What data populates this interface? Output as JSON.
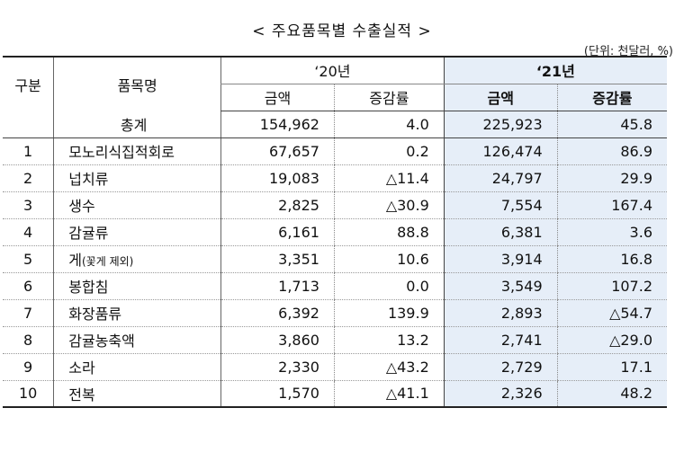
{
  "title": "<  주요품목별  수출실적  >",
  "unit": "(단위: 천달러, %)",
  "header": {
    "col_category": "구분",
    "col_item": "품목명",
    "year_20": "‘20년",
    "year_21": "‘21년",
    "amount": "금액",
    "rate": "증감률"
  },
  "total": {
    "label": "총계",
    "amount_20": "154,962",
    "rate_20": "4.0",
    "amount_21": "225,923",
    "rate_21": "45.8"
  },
  "rows": [
    {
      "no": "1",
      "name": "모노리식집적회로",
      "note": "",
      "amount_20": "67,657",
      "rate_20": "0.2",
      "amount_21": "126,474",
      "rate_21": "86.9"
    },
    {
      "no": "2",
      "name": "넙치류",
      "note": "",
      "amount_20": "19,083",
      "rate_20": "△11.4",
      "amount_21": "24,797",
      "rate_21": "29.9"
    },
    {
      "no": "3",
      "name": "생수",
      "note": "",
      "amount_20": "2,825",
      "rate_20": "△30.9",
      "amount_21": "7,554",
      "rate_21": "167.4"
    },
    {
      "no": "4",
      "name": "감귤류",
      "note": "",
      "amount_20": "6,161",
      "rate_20": "88.8",
      "amount_21": "6,381",
      "rate_21": "3.6"
    },
    {
      "no": "5",
      "name": "게",
      "note": "(꽃게 제외)",
      "amount_20": "3,351",
      "rate_20": "10.6",
      "amount_21": "3,914",
      "rate_21": "16.8"
    },
    {
      "no": "6",
      "name": "봉합침",
      "note": "",
      "amount_20": "1,713",
      "rate_20": "0.0",
      "amount_21": "3,549",
      "rate_21": "107.2"
    },
    {
      "no": "7",
      "name": "화장품류",
      "note": "",
      "amount_20": "6,392",
      "rate_20": "139.9",
      "amount_21": "2,893",
      "rate_21": "△54.7"
    },
    {
      "no": "8",
      "name": "감귤농축액",
      "note": "",
      "amount_20": "3,860",
      "rate_20": "13.2",
      "amount_21": "2,741",
      "rate_21": "△29.0"
    },
    {
      "no": "9",
      "name": "소라",
      "note": "",
      "amount_20": "2,330",
      "rate_20": "△43.2",
      "amount_21": "2,729",
      "rate_21": "17.1"
    },
    {
      "no": "10",
      "name": "전복",
      "note": "",
      "amount_20": "1,570",
      "rate_20": "△41.1",
      "amount_21": "2,326",
      "rate_21": "48.2"
    }
  ]
}
